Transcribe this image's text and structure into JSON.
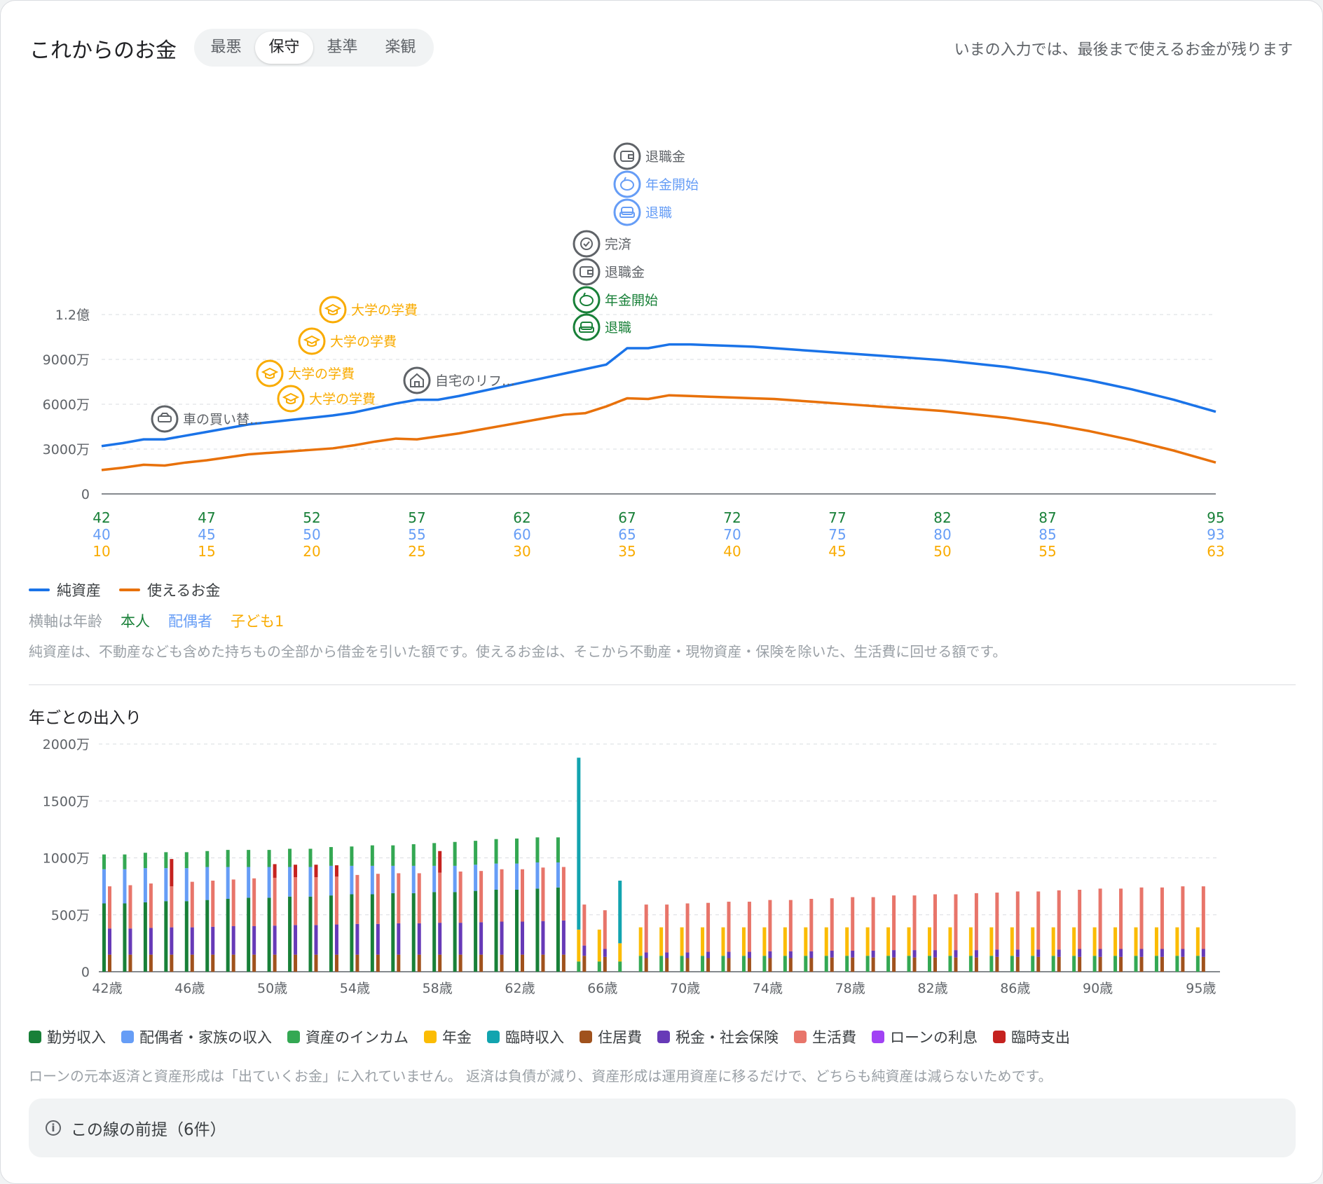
{
  "header": {
    "title": "これからのお金",
    "status": "いまの入力では、最後まで使えるお金が残ります"
  },
  "tabs": [
    {
      "label": "最悪",
      "active": false
    },
    {
      "label": "保守",
      "active": true
    },
    {
      "label": "基準",
      "active": false
    },
    {
      "label": "楽観",
      "active": false
    }
  ],
  "colors": {
    "net": "#1a73e8",
    "usable": "#e8710a",
    "self": "#188038",
    "spouse": "#669df6",
    "child": "#f9ab00"
  },
  "chart_data": [
    {
      "type": "line",
      "ylim": [
        0,
        120000000
      ],
      "yticks": [
        {
          "v": 0,
          "label": "0"
        },
        {
          "v": 30000000,
          "label": "3000万"
        },
        {
          "v": 60000000,
          "label": "6000万"
        },
        {
          "v": 90000000,
          "label": "9000万"
        },
        {
          "v": 120000000,
          "label": "1.2億"
        }
      ],
      "x": [
        42,
        43,
        44,
        45,
        46,
        47,
        48,
        49,
        50,
        51,
        52,
        53,
        54,
        55,
        56,
        57,
        58,
        59,
        60,
        61,
        62,
        63,
        64,
        65,
        66,
        67,
        68,
        69,
        70,
        71,
        72,
        73,
        74,
        75,
        76,
        77,
        78,
        79,
        80,
        81,
        82,
        83,
        84,
        85,
        86,
        87,
        88,
        89,
        90,
        91,
        92,
        93,
        94,
        95
      ],
      "series": [
        {
          "name": "純資産",
          "color": "#1a73e8",
          "values": [
            32,
            34,
            36.5,
            36.5,
            39,
            41.5,
            44,
            46.5,
            48,
            49.5,
            51,
            52.5,
            54.5,
            57.5,
            60.5,
            63,
            63,
            65.5,
            68.5,
            71.5,
            74.5,
            77.5,
            80.5,
            83.5,
            86.5,
            97.5,
            97.5,
            100,
            100,
            99.5,
            99,
            98.5,
            97.5,
            96.5,
            95.5,
            94.5,
            93.5,
            92.5,
            91.5,
            90.5,
            89.5,
            88,
            86.5,
            85,
            83,
            81,
            78.5,
            76,
            73,
            70,
            66.5,
            63,
            59,
            55
          ]
        },
        {
          "name": "使えるお金",
          "color": "#e8710a",
          "values": [
            16,
            17.5,
            19.5,
            19,
            21,
            22.5,
            24.5,
            26.5,
            27.5,
            28.5,
            29.5,
            30.5,
            32.5,
            35,
            37,
            36.5,
            38.5,
            40.5,
            43,
            45.5,
            48,
            50.5,
            53,
            54,
            58.5,
            64,
            63.5,
            66,
            65.5,
            65,
            64.5,
            64,
            63.5,
            62.5,
            61.5,
            60.5,
            59.5,
            58.5,
            57.5,
            56.5,
            55.5,
            54,
            52.5,
            51,
            49,
            47,
            44.5,
            42,
            39,
            36,
            32.5,
            29,
            25,
            21
          ]
        }
      ],
      "value_unit_multiplier": 1000000,
      "x_label_rows": [
        {
          "label": "本人",
          "color": "#188038",
          "ticks": [
            "42",
            "47",
            "52",
            "57",
            "62",
            "67",
            "72",
            "77",
            "82",
            "87",
            "95"
          ]
        },
        {
          "label": "配偶者",
          "color": "#669df6",
          "ticks": [
            "40",
            "45",
            "50",
            "55",
            "60",
            "65",
            "70",
            "75",
            "80",
            "85",
            "93"
          ]
        },
        {
          "label": "子ども1",
          "color": "#f9ab00",
          "ticks": [
            "10",
            "15",
            "20",
            "25",
            "30",
            "35",
            "40",
            "45",
            "50",
            "55",
            "63"
          ]
        }
      ],
      "x_tick_ages": [
        42,
        47,
        52,
        57,
        62,
        67,
        72,
        77,
        82,
        87,
        95
      ],
      "events": [
        {
          "age": 45,
          "label": "車の買い替…",
          "icon": "car-icon",
          "color": "#5f6368",
          "level": 0
        },
        {
          "age": 50,
          "label": "大学の学費",
          "icon": "graduation-cap-icon",
          "color": "#f9ab00",
          "level": 2
        },
        {
          "age": 51,
          "label": "大学の学費",
          "icon": "graduation-cap-icon",
          "color": "#f9ab00",
          "level": 1
        },
        {
          "age": 52,
          "label": "大学の学費",
          "icon": "graduation-cap-icon",
          "color": "#f9ab00",
          "level": 3
        },
        {
          "age": 53,
          "label": "大学の学費",
          "icon": "graduation-cap-icon",
          "color": "#f9ab00",
          "level": 4
        },
        {
          "age": 57,
          "label": "自宅のリフ…",
          "icon": "house-icon",
          "color": "#5f6368",
          "level": 1
        },
        {
          "age": 65,
          "label": "退職",
          "icon": "armchair-icon",
          "color": "#188038",
          "level": 1
        },
        {
          "age": 65,
          "label": "年金開始",
          "icon": "piggy-bank-icon",
          "color": "#188038",
          "level": 2
        },
        {
          "age": 65,
          "label": "退職金",
          "icon": "wallet-icon",
          "color": "#5f6368",
          "level": 3
        },
        {
          "age": 65,
          "label": "完済",
          "icon": "check-circle-icon",
          "color": "#5f6368",
          "level": 4
        },
        {
          "age": 67,
          "label": "退職",
          "icon": "armchair-icon",
          "color": "#669df6",
          "level": 5
        },
        {
          "age": 67,
          "label": "年金開始",
          "icon": "piggy-bank-icon",
          "color": "#669df6",
          "level": 6
        },
        {
          "age": 67,
          "label": "退職金",
          "icon": "wallet-icon",
          "color": "#5f6368",
          "level": 7
        }
      ]
    },
    {
      "type": "bar",
      "title": "年ごとの出入り",
      "ylim": [
        0,
        2000
      ],
      "yticks": [
        {
          "v": 0,
          "label": "0"
        },
        {
          "v": 500,
          "label": "500万"
        },
        {
          "v": 1000,
          "label": "1000万"
        },
        {
          "v": 1500,
          "label": "1500万"
        },
        {
          "v": 2000,
          "label": "2000万"
        }
      ],
      "ages": [
        42,
        43,
        44,
        45,
        46,
        47,
        48,
        49,
        50,
        51,
        52,
        53,
        54,
        55,
        56,
        57,
        58,
        59,
        60,
        61,
        62,
        63,
        64,
        65,
        66,
        67,
        68,
        69,
        70,
        71,
        72,
        73,
        74,
        75,
        76,
        77,
        78,
        79,
        80,
        81,
        82,
        83,
        84,
        85,
        86,
        87,
        88,
        89,
        90,
        91,
        92,
        93,
        94,
        95
      ],
      "xticks": [
        "42歳",
        "46歳",
        "50歳",
        "54歳",
        "58歳",
        "62歳",
        "66歳",
        "70歳",
        "74歳",
        "78歳",
        "82歳",
        "86歳",
        "90歳",
        "95歳"
      ],
      "income_categories": [
        "勤労収入",
        "配偶者・家族の収入",
        "資産のインカム",
        "年金",
        "臨時収入"
      ],
      "expense_categories": [
        "住居費",
        "税金・社会保険",
        "生活費",
        "ローンの利息",
        "臨時支出"
      ],
      "category_colors": {
        "勤労収入": "#188038",
        "配偶者・家族の収入": "#669df6",
        "資産のインカム": "#34a853",
        "年金": "#fbbc04",
        "臨時収入": "#12a4af",
        "住居費": "#a0521d",
        "税金・社会保険": "#673ab7",
        "生活費": "#e8756a",
        "ローンの利息": "#a142f4",
        "臨時支出": "#c5221f"
      },
      "income": [
        [
          600,
          300,
          130,
          0,
          0
        ],
        [
          600,
          300,
          130,
          0,
          0
        ],
        [
          610,
          300,
          135,
          0,
          0
        ],
        [
          620,
          290,
          140,
          0,
          0
        ],
        [
          620,
          290,
          140,
          0,
          0
        ],
        [
          630,
          290,
          140,
          0,
          0
        ],
        [
          640,
          280,
          150,
          0,
          0
        ],
        [
          650,
          270,
          150,
          0,
          0
        ],
        [
          650,
          270,
          150,
          0,
          0
        ],
        [
          660,
          260,
          160,
          0,
          0
        ],
        [
          660,
          260,
          160,
          0,
          0
        ],
        [
          670,
          260,
          165,
          0,
          0
        ],
        [
          680,
          250,
          170,
          0,
          0
        ],
        [
          680,
          250,
          180,
          0,
          0
        ],
        [
          690,
          240,
          180,
          0,
          0
        ],
        [
          690,
          240,
          190,
          0,
          0
        ],
        [
          700,
          230,
          200,
          0,
          0
        ],
        [
          700,
          230,
          210,
          0,
          0
        ],
        [
          710,
          230,
          210,
          0,
          0
        ],
        [
          720,
          230,
          215,
          0,
          0
        ],
        [
          720,
          230,
          220,
          0,
          0
        ],
        [
          730,
          230,
          220,
          0,
          0
        ],
        [
          740,
          220,
          220,
          0,
          0
        ],
        [
          0,
          0,
          90,
          280,
          1510
        ],
        [
          0,
          0,
          90,
          280,
          0
        ],
        [
          0,
          0,
          90,
          160,
          550
        ],
        [
          0,
          0,
          140,
          250,
          0
        ],
        [
          0,
          0,
          140,
          250,
          0
        ],
        [
          0,
          0,
          140,
          250,
          0
        ],
        [
          0,
          0,
          140,
          250,
          0
        ],
        [
          0,
          0,
          140,
          250,
          0
        ],
        [
          0,
          0,
          140,
          250,
          0
        ],
        [
          0,
          0,
          140,
          250,
          0
        ],
        [
          0,
          0,
          140,
          250,
          0
        ],
        [
          0,
          0,
          140,
          250,
          0
        ],
        [
          0,
          0,
          140,
          250,
          0
        ],
        [
          0,
          0,
          140,
          250,
          0
        ],
        [
          0,
          0,
          140,
          250,
          0
        ],
        [
          0,
          0,
          140,
          250,
          0
        ],
        [
          0,
          0,
          140,
          250,
          0
        ],
        [
          0,
          0,
          140,
          250,
          0
        ],
        [
          0,
          0,
          140,
          250,
          0
        ],
        [
          0,
          0,
          140,
          250,
          0
        ],
        [
          0,
          0,
          140,
          250,
          0
        ],
        [
          0,
          0,
          140,
          250,
          0
        ],
        [
          0,
          0,
          140,
          250,
          0
        ],
        [
          0,
          0,
          140,
          250,
          0
        ],
        [
          0,
          0,
          140,
          250,
          0
        ],
        [
          0,
          0,
          140,
          250,
          0
        ],
        [
          0,
          0,
          140,
          250,
          0
        ],
        [
          0,
          0,
          140,
          250,
          0
        ],
        [
          0,
          0,
          140,
          250,
          0
        ],
        [
          0,
          0,
          140,
          250,
          0
        ],
        [
          0,
          0,
          140,
          250,
          0
        ]
      ],
      "expense": [
        [
          150,
          230,
          370,
          0,
          0
        ],
        [
          150,
          230,
          380,
          0,
          0
        ],
        [
          150,
          235,
          390,
          0,
          0
        ],
        [
          150,
          240,
          360,
          0,
          240
        ],
        [
          150,
          240,
          400,
          0,
          0
        ],
        [
          150,
          245,
          405,
          0,
          0
        ],
        [
          150,
          250,
          410,
          0,
          0
        ],
        [
          150,
          250,
          420,
          0,
          0
        ],
        [
          150,
          255,
          420,
          0,
          120
        ],
        [
          150,
          260,
          420,
          0,
          110
        ],
        [
          150,
          260,
          420,
          0,
          110
        ],
        [
          150,
          265,
          420,
          0,
          100
        ],
        [
          150,
          270,
          430,
          0,
          0
        ],
        [
          150,
          270,
          440,
          0,
          0
        ],
        [
          150,
          275,
          440,
          0,
          0
        ],
        [
          150,
          275,
          440,
          0,
          0
        ],
        [
          150,
          280,
          440,
          0,
          190
        ],
        [
          150,
          280,
          450,
          0,
          0
        ],
        [
          150,
          285,
          450,
          0,
          0
        ],
        [
          150,
          290,
          460,
          0,
          0
        ],
        [
          150,
          290,
          460,
          0,
          0
        ],
        [
          150,
          295,
          470,
          0,
          0
        ],
        [
          150,
          300,
          470,
          0,
          0
        ],
        [
          140,
          90,
          360,
          0,
          0
        ],
        [
          130,
          70,
          340,
          0,
          0
        ],
        [
          0,
          0,
          0,
          0,
          0
        ],
        [
          120,
          50,
          420,
          0,
          0
        ],
        [
          120,
          50,
          420,
          0,
          0
        ],
        [
          120,
          50,
          430,
          0,
          0
        ],
        [
          120,
          55,
          430,
          0,
          0
        ],
        [
          120,
          55,
          440,
          0,
          0
        ],
        [
          120,
          55,
          440,
          0,
          0
        ],
        [
          120,
          60,
          450,
          0,
          0
        ],
        [
          120,
          60,
          450,
          0,
          0
        ],
        [
          120,
          60,
          460,
          0,
          0
        ],
        [
          125,
          60,
          460,
          0,
          0
        ],
        [
          125,
          60,
          470,
          0,
          0
        ],
        [
          125,
          60,
          470,
          0,
          0
        ],
        [
          125,
          65,
          480,
          0,
          0
        ],
        [
          125,
          65,
          480,
          0,
          0
        ],
        [
          125,
          65,
          490,
          0,
          0
        ],
        [
          125,
          65,
          490,
          0,
          0
        ],
        [
          125,
          65,
          500,
          0,
          0
        ],
        [
          130,
          65,
          500,
          0,
          0
        ],
        [
          130,
          65,
          510,
          0,
          0
        ],
        [
          130,
          65,
          510,
          0,
          0
        ],
        [
          130,
          65,
          520,
          0,
          0
        ],
        [
          130,
          70,
          520,
          0,
          0
        ],
        [
          130,
          70,
          530,
          0,
          0
        ],
        [
          130,
          70,
          530,
          0,
          0
        ],
        [
          130,
          70,
          540,
          0,
          0
        ],
        [
          130,
          70,
          540,
          0,
          0
        ],
        [
          130,
          70,
          550,
          0,
          0
        ],
        [
          130,
          70,
          550,
          0,
          0
        ]
      ]
    }
  ],
  "legend_lines": [
    {
      "label": "純資産",
      "color": "#1a73e8"
    },
    {
      "label": "使えるお金",
      "color": "#e8710a"
    }
  ],
  "axis_note": {
    "prefix": "横軸は年齢",
    "self": "本人",
    "spouse": "配偶者",
    "child": "子ども1"
  },
  "note1": "純資産は、不動産なども含めた持ちもの全部から借金を引いた額です。使えるお金は、そこから不動産・現物資産・保険を除いた、生活費に回せる額です。",
  "section2_title": "年ごとの出入り",
  "legend_bars": [
    {
      "label": "勤労収入",
      "color": "#188038"
    },
    {
      "label": "配偶者・家族の収入",
      "color": "#669df6"
    },
    {
      "label": "資産のインカム",
      "color": "#34a853"
    },
    {
      "label": "年金",
      "color": "#fbbc04"
    },
    {
      "label": "臨時収入",
      "color": "#12a4af"
    },
    {
      "label": "住居費",
      "color": "#a0521d"
    },
    {
      "label": "税金・社会保険",
      "color": "#673ab7"
    },
    {
      "label": "生活費",
      "color": "#e8756a"
    },
    {
      "label": "ローンの利息",
      "color": "#a142f4"
    },
    {
      "label": "臨時支出",
      "color": "#c5221f"
    }
  ],
  "note2": "ローンの元本返済と資産形成は「出ていくお金」に入れていません。 返済は負債が減り、資産形成は運用資産に移るだけで、どちらも純資産は減らないためです。",
  "assumptions": {
    "icon": "info-icon",
    "label": "この線の前提（6件）"
  }
}
